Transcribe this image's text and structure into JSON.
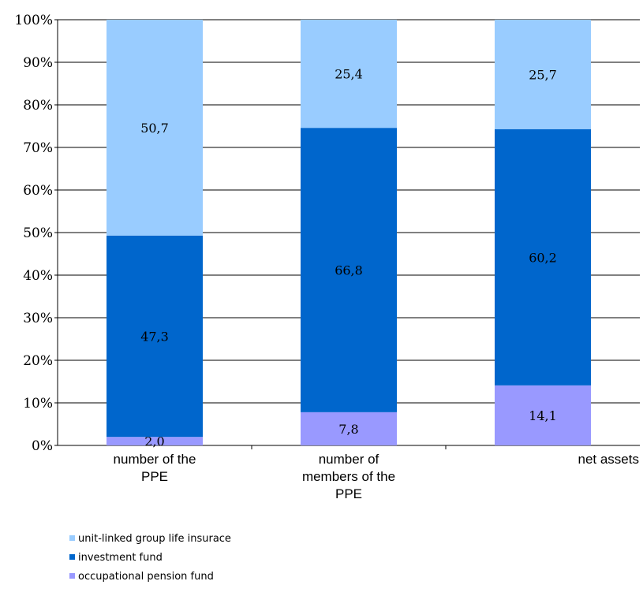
{
  "chart_data": {
    "type": "bar",
    "stacked": true,
    "normalized": true,
    "categories": [
      [
        "number of the",
        "PPE"
      ],
      [
        "number of",
        "members of the",
        "PPE"
      ],
      [
        "net assets"
      ]
    ],
    "series": [
      {
        "name": "occupational pension fund",
        "color": "#9999ff",
        "values": [
          2.0,
          7.8,
          14.1
        ],
        "labels": [
          "2,0",
          "7,8",
          "14,1"
        ]
      },
      {
        "name": "investment fund",
        "color": "#0066cc",
        "values": [
          47.3,
          66.8,
          60.2
        ],
        "labels": [
          "47,3",
          "66,8",
          "60,2"
        ]
      },
      {
        "name": "unit-linked group life insurace",
        "color": "#99ccff",
        "values": [
          50.7,
          25.4,
          25.7
        ],
        "labels": [
          "50,7",
          "25,4",
          "25,7"
        ]
      }
    ],
    "yticks": [
      "0%",
      "10%",
      "20%",
      "30%",
      "40%",
      "50%",
      "60%",
      "70%",
      "80%",
      "90%",
      "100%"
    ],
    "ylim": [
      0,
      100
    ],
    "grid": true,
    "legend_position": "bottom-left",
    "legend_order": [
      "unit-linked group life insurace",
      "investment fund",
      "occupational pension fund"
    ]
  }
}
